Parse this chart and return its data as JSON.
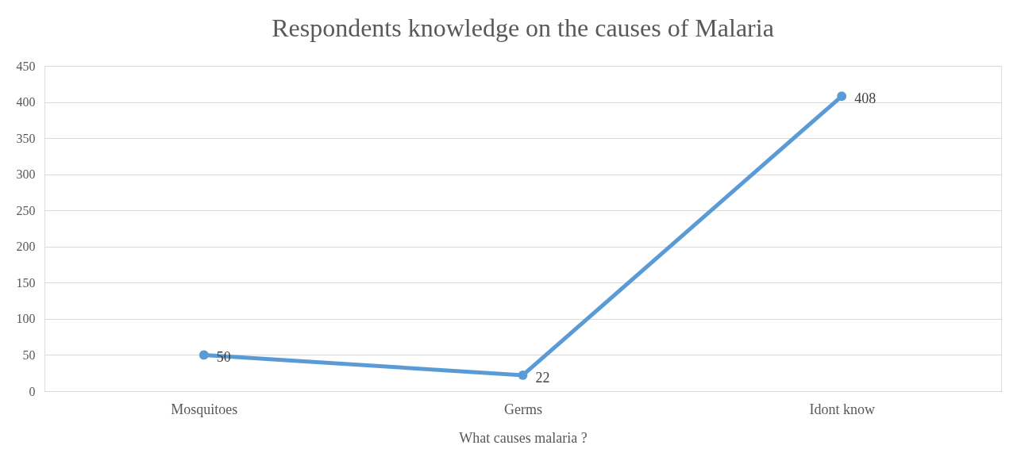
{
  "chart_data": {
    "type": "line",
    "title": "Respondents knowledge on the causes of  Malaria",
    "xlabel": "What causes malaria ?",
    "categories": [
      "Mosquitoes",
      "Germs",
      "Idont know"
    ],
    "values": [
      50,
      22,
      408
    ],
    "color": "#5b9bd5",
    "ylim": [
      0,
      450
    ],
    "yticks": [
      0,
      50,
      100,
      150,
      200,
      250,
      300,
      350,
      400,
      450
    ],
    "grid": "y",
    "marker": "circle",
    "data_labels": true
  }
}
